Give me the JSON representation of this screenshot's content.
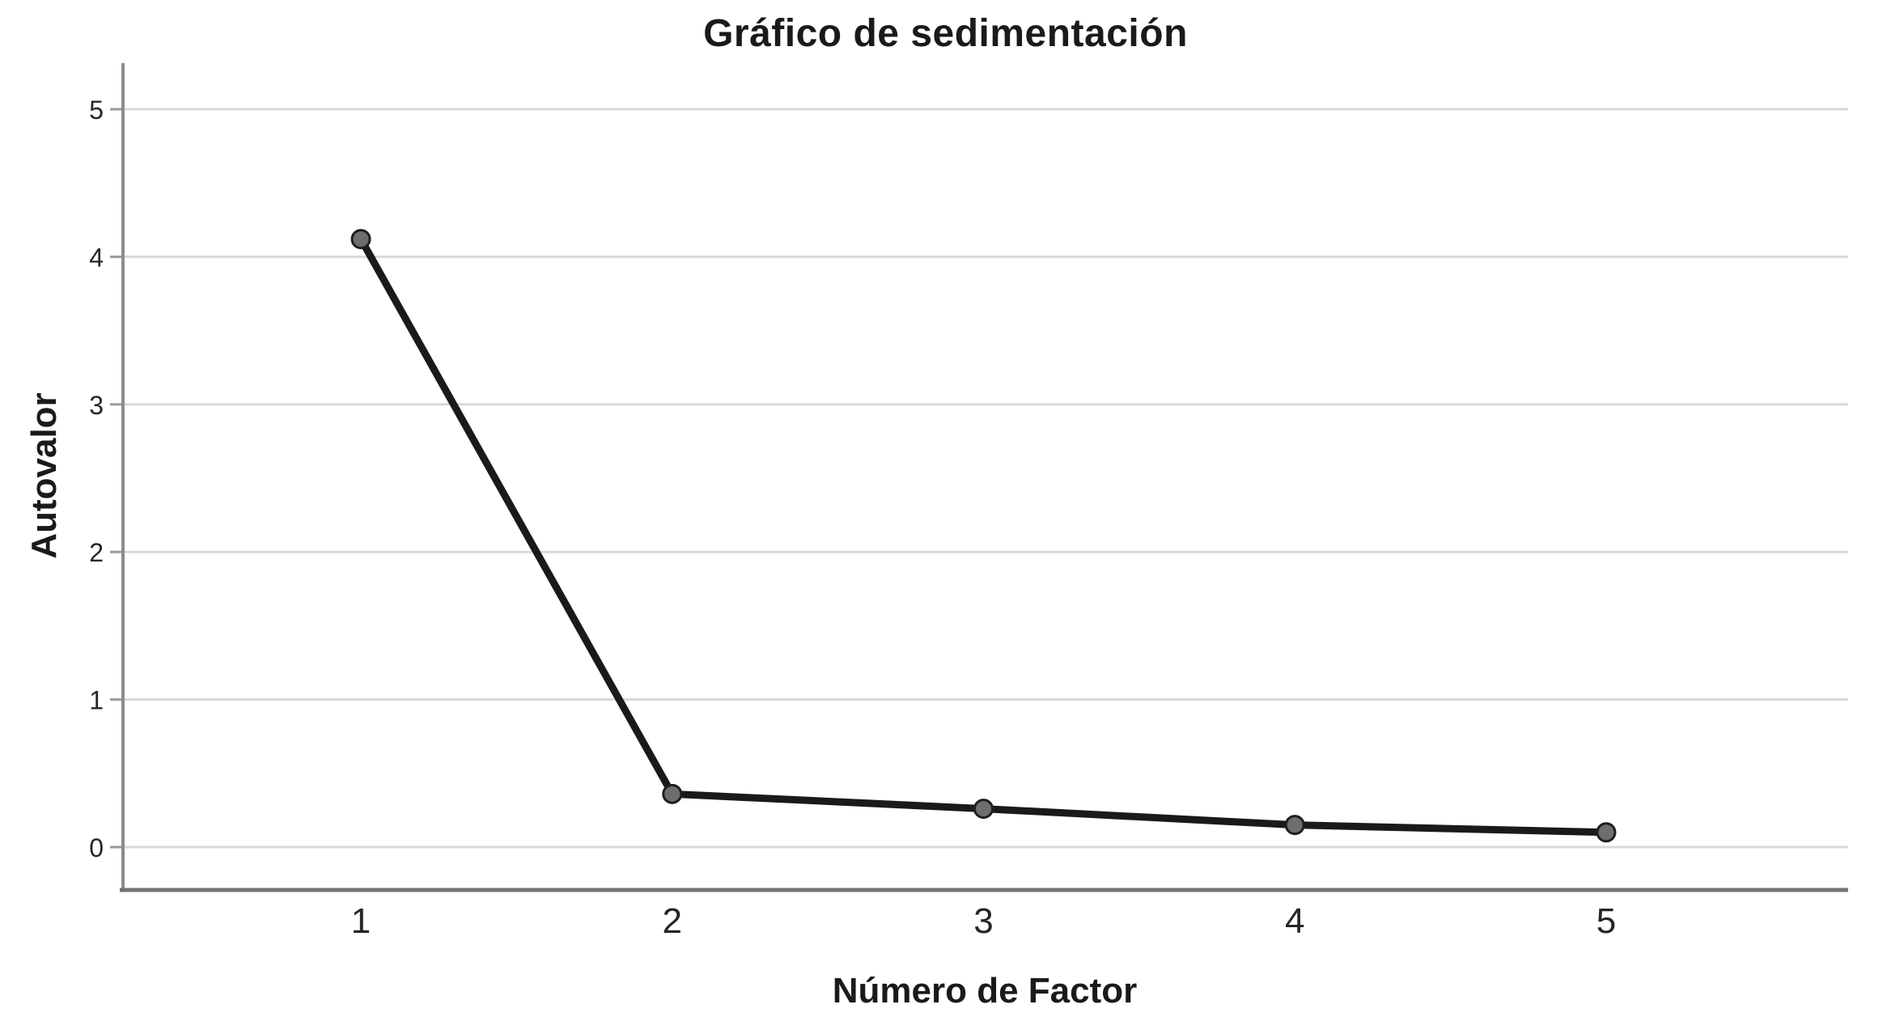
{
  "chart_data": {
    "type": "line",
    "title": "Gráfico de sedimentación",
    "xlabel": "Número de Factor",
    "ylabel": "Autovalor",
    "x": [
      1,
      2,
      3,
      4,
      5
    ],
    "series": [
      {
        "name": "Autovalor",
        "values": [
          4.12,
          0.36,
          0.26,
          0.15,
          0.1
        ]
      }
    ],
    "xticks": [
      "1",
      "2",
      "3",
      "4",
      "5"
    ],
    "yticks": [
      "0",
      "1",
      "2",
      "3",
      "4",
      "5"
    ],
    "ylim": [
      0,
      5
    ],
    "grid": "horizontal",
    "legend_position": "none",
    "colors": {
      "line": "#1a1a1a",
      "marker_fill": "#6e6e6e",
      "marker_stroke": "#1f1f1f",
      "gridline": "#d8d8d8",
      "tick": "#9b9b9b",
      "y_axis_line": "#8c8c8c",
      "bottom_frame": "#737373",
      "text": "#262626",
      "background": "#ffffff"
    }
  }
}
